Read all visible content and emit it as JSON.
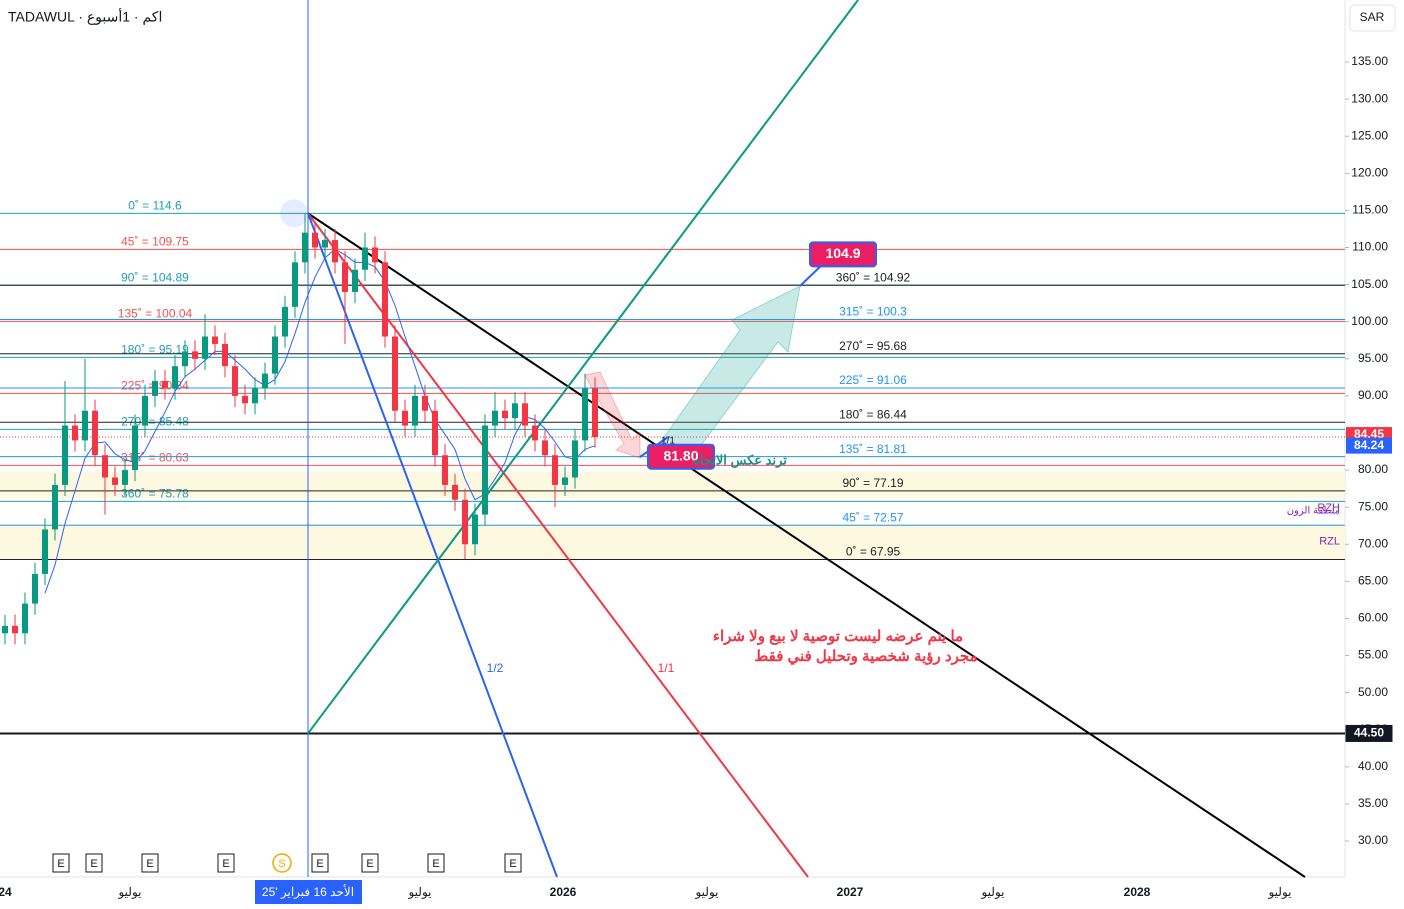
{
  "header": {
    "symbol": "TADAWUL · اكم · 1أسبوع",
    "currency": "SAR"
  },
  "chart_data": {
    "type": "candlestick",
    "ylim": [
      25.15,
      143.36
    ],
    "yticks": [
      {
        "value": 135,
        "label": "135.00"
      },
      {
        "value": 130,
        "label": "130.00"
      },
      {
        "value": 125,
        "label": "125.00"
      },
      {
        "value": 120,
        "label": "120.00"
      },
      {
        "value": 115,
        "label": "115.00"
      },
      {
        "value": 110,
        "label": "110.00"
      },
      {
        "value": 105,
        "label": "105.00"
      },
      {
        "value": 100,
        "label": "100.00"
      },
      {
        "value": 95,
        "label": "95.00"
      },
      {
        "value": 90,
        "label": "90.00"
      },
      {
        "value": 85,
        "label": "85.00"
      },
      {
        "value": 80,
        "label": "80.00"
      },
      {
        "value": 75,
        "label": "75.00"
      },
      {
        "value": 70,
        "label": "70.00"
      },
      {
        "value": 65,
        "label": "65.00"
      },
      {
        "value": 60,
        "label": "60.00"
      },
      {
        "value": 55,
        "label": "55.00"
      },
      {
        "value": 50,
        "label": "50.00"
      },
      {
        "value": 45,
        "label": "45.00"
      },
      {
        "value": 40,
        "label": "40.00"
      },
      {
        "value": 35,
        "label": "35.00"
      },
      {
        "value": 30,
        "label": "30.00"
      }
    ],
    "open": [
      58,
      59,
      58,
      62,
      66,
      72,
      78,
      86,
      84,
      88,
      82,
      79,
      78,
      80,
      86,
      90,
      92,
      91,
      94,
      96,
      95,
      98,
      97,
      94,
      90,
      89,
      91,
      93,
      98,
      102,
      108,
      112,
      110,
      111,
      108,
      104,
      107,
      110,
      108,
      98,
      88,
      86,
      90,
      88,
      82,
      78,
      76,
      70,
      74,
      86,
      88,
      87,
      89,
      86,
      84,
      82,
      78,
      79,
      84,
      91
    ],
    "high": [
      60.5,
      60.5,
      63.5,
      67.5,
      73.5,
      79.5,
      92,
      87.5,
      95,
      89.5,
      83.5,
      80.5,
      81.5,
      87.5,
      91.5,
      93.5,
      93.5,
      95.5,
      97.5,
      97.5,
      101,
      99.5,
      98.5,
      95.5,
      91.5,
      92.5,
      94.5,
      99.5,
      103.5,
      109.5,
      114.6,
      113.5,
      112.5,
      112.5,
      109.5,
      108.5,
      112,
      111.5,
      109.5,
      99.5,
      89.5,
      91.5,
      91.5,
      89.5,
      83.5,
      79.5,
      77.5,
      75.5,
      87.5,
      90.5,
      89.5,
      90.5,
      90.5,
      87.5,
      85.5,
      83.5,
      80.5,
      85.5,
      93,
      92.5
    ],
    "low": [
      56.5,
      56.5,
      56.5,
      60.5,
      64.5,
      70.5,
      76.5,
      82.5,
      82.5,
      80.5,
      74,
      76.5,
      76.5,
      78.5,
      84.5,
      88.5,
      89.5,
      89.5,
      92.5,
      93.5,
      93.5,
      95.5,
      92.5,
      88.5,
      87.5,
      87.5,
      89.5,
      91.5,
      96.5,
      100.5,
      106.5,
      108.5,
      108.5,
      106.5,
      97,
      102.5,
      105.5,
      106.5,
      96.5,
      86.5,
      84.5,
      84.5,
      86.5,
      80.5,
      76.5,
      74.5,
      68,
      68.5,
      72.5,
      84.5,
      85.5,
      85.5,
      84.5,
      82.5,
      80.5,
      75,
      76.5,
      77.5,
      82.5,
      83
    ],
    "close": [
      59,
      58,
      62,
      66,
      72,
      78,
      86,
      84,
      88,
      82,
      79,
      78,
      80,
      86,
      90,
      92,
      91,
      94,
      96,
      95,
      98,
      97,
      94,
      90,
      89,
      91,
      93,
      98,
      102,
      108,
      112,
      110,
      111,
      108,
      104,
      107,
      110,
      108,
      98,
      88,
      86,
      90,
      88,
      82,
      78,
      76,
      70,
      74,
      86,
      88,
      87,
      89,
      86,
      84,
      82,
      78,
      79,
      84,
      91,
      84.45
    ],
    "levels_left": [
      {
        "label": "0˚ = 114.6",
        "value": 114.6
      },
      {
        "label": "45˚ = 109.75",
        "value": 109.75
      },
      {
        "label": "90˚ = 104.89",
        "value": 104.89
      },
      {
        "label": "135˚ = 100.04",
        "value": 100.04
      },
      {
        "label": "180˚ = 95.19",
        "value": 95.19
      },
      {
        "label": "225˚ = 90.34",
        "value": 90.34
      },
      {
        "label": "270˚ = 85.48",
        "value": 85.48
      },
      {
        "label": "315˚ = 80.63",
        "value": 80.63
      },
      {
        "label": "360˚ = 75.78",
        "value": 75.78
      }
    ],
    "levels_right": [
      {
        "label": "360˚ = 104.92",
        "value": 104.92
      },
      {
        "label": "315˚ = 100.3",
        "value": 100.3
      },
      {
        "label": "270˚ = 95.68",
        "value": 95.68
      },
      {
        "label": "225˚ = 91.06",
        "value": 91.06
      },
      {
        "label": "180˚ = 86.44",
        "value": 86.44
      },
      {
        "label": "135˚ = 81.81",
        "value": 81.81
      },
      {
        "label": "90˚ = 77.19",
        "value": 77.19
      },
      {
        "label": "45˚ = 72.57",
        "value": 72.57
      },
      {
        "label": "0˚ = 67.95",
        "value": 67.95
      }
    ],
    "zones": [
      {
        "label": "RZH",
        "from": 76.2,
        "to": 79.8
      },
      {
        "label": "RZL",
        "from": 68,
        "to": 72.8
      }
    ],
    "zone_name": "منطقة الزون",
    "price_tags": [
      {
        "value": 84.45,
        "label": "84.45",
        "color": "#f23645"
      },
      {
        "value": 84.24,
        "label": "84.24",
        "color": "#2962ff"
      },
      {
        "value": 44.5,
        "label": "44.50",
        "color": "#131722"
      }
    ],
    "targets": [
      {
        "value": 104.9,
        "label": "104.9"
      },
      {
        "value": 81.8,
        "label": "81.80"
      }
    ],
    "annotations": {
      "trend": "ترند عكس الاتجاه",
      "disclaimer1": "ما يتم عرضه ليست توصية  لا بيع ولا شراء",
      "disclaimer2": "مجرد رؤية شخصية وتحليل فني  فقط",
      "half": "1/2",
      "one": "1/1",
      "small": "1/1"
    },
    "xlabels": [
      "24",
      "يوليو",
      "الأحد 16 فبراير '25",
      "يوليو",
      "2026",
      "يوليو",
      "2027",
      "يوليو",
      "2028",
      "يوليو"
    ],
    "events": [
      "E",
      "E",
      "E",
      "E",
      "S",
      "E",
      "E",
      "E",
      "E"
    ]
  }
}
